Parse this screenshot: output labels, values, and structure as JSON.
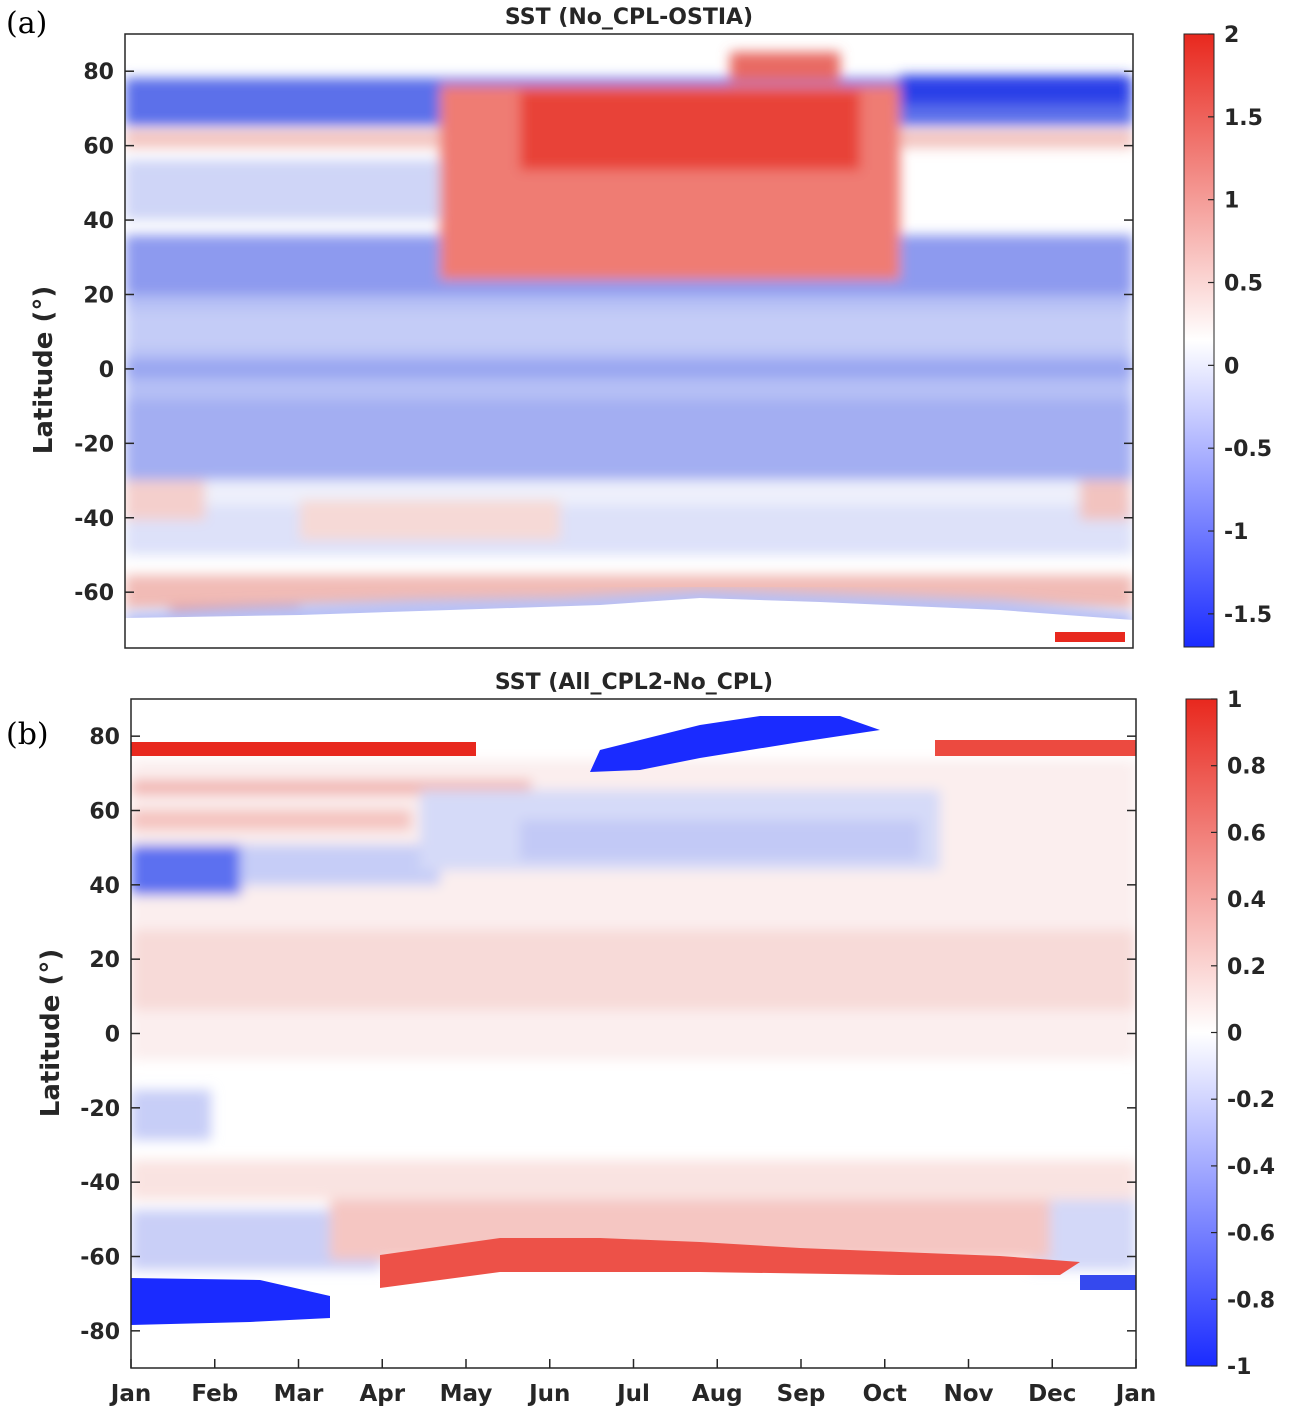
{
  "chart_data": [
    {
      "type": "heatmap",
      "panel_label": "(a)",
      "title": "SST (No_CPL-OSTIA)",
      "xlabel": "",
      "ylabel": "Latitude (°)",
      "x_categories": [],
      "ylim": [
        -75,
        90
      ],
      "yticks": [
        80,
        60,
        40,
        20,
        0,
        -20,
        -40,
        -60
      ],
      "colorbar": {
        "min": -1.7,
        "max": 2,
        "ticks": [
          2,
          1.5,
          1,
          0.5,
          0,
          -0.5,
          -1,
          -1.5
        ],
        "tick_labels": [
          "2",
          "1.5",
          "1",
          "0.5",
          "0",
          "-0.5",
          "-1",
          "-1.5"
        ],
        "colormap": "blue-white-red"
      },
      "features": [
        {
          "lat": [
            62,
            78
          ],
          "month": [
            0,
            12
          ],
          "value": -1.0
        },
        {
          "lat": [
            40,
            74
          ],
          "month": [
            4,
            9.3
          ],
          "value": 1.5
        },
        {
          "lat": [
            18,
            34
          ],
          "month": [
            0,
            12
          ],
          "value": -0.8
        },
        {
          "lat": [
            -30,
            16
          ],
          "month": [
            0,
            12
          ],
          "value": -0.6
        },
        {
          "lat": [
            -44,
            -34
          ],
          "month": [
            0,
            12
          ],
          "value": 0.4
        },
        {
          "lat": [
            -65,
            -55
          ],
          "month": [
            0,
            12
          ],
          "value": 0.6
        }
      ]
    },
    {
      "type": "heatmap",
      "panel_label": "(b)",
      "title": "SST (All_CPL2-No_CPL)",
      "xlabel": "",
      "ylabel": "Latitude (°)",
      "x_categories": [
        "Jan",
        "Feb",
        "Mar",
        "Apr",
        "May",
        "Jun",
        "Jul",
        "Aug",
        "Sep",
        "Oct",
        "Nov",
        "Dec",
        "Jan"
      ],
      "ylim": [
        -90,
        90
      ],
      "yticks": [
        80,
        60,
        40,
        20,
        0,
        -20,
        -40,
        -60,
        -80
      ],
      "colorbar": {
        "min": -1,
        "max": 1,
        "ticks": [
          1,
          0.8,
          0.6,
          0.4,
          0.2,
          0,
          -0.2,
          -0.4,
          -0.6,
          -0.8,
          -1
        ],
        "tick_labels": [
          "1",
          "0.8",
          "0.6",
          "0.4",
          "0.2",
          "0",
          "-0.2",
          "-0.4",
          "-0.6",
          "-0.8",
          "-1"
        ],
        "colormap": "blue-white-red"
      },
      "features": [
        {
          "lat": [
            76,
            80
          ],
          "month": [
            0,
            4
          ],
          "value": 0.8
        },
        {
          "lat": [
            70,
            84
          ],
          "month": [
            5.5,
            9
          ],
          "value": -0.9
        },
        {
          "lat": [
            40,
            50
          ],
          "month": [
            0,
            1
          ],
          "value": -0.6
        },
        {
          "lat": [
            -72,
            -60
          ],
          "month": [
            3,
            11
          ],
          "value": 0.8
        },
        {
          "lat": [
            -78,
            -66
          ],
          "month": [
            0,
            2.5
          ],
          "value": -1.0
        }
      ]
    }
  ]
}
